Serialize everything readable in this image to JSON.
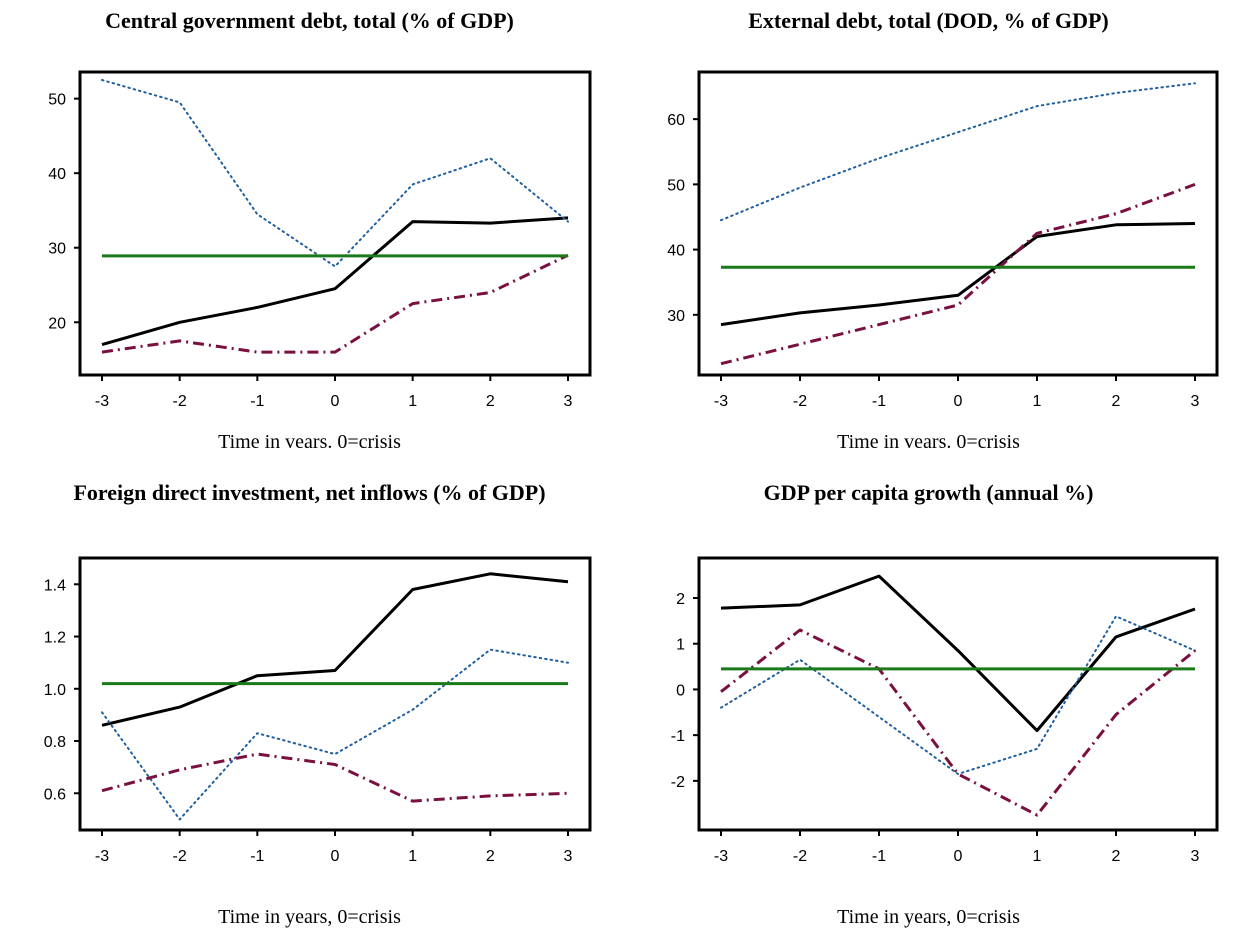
{
  "colors": {
    "series_solid": "#000000",
    "series_dotted": "#1f5f9f",
    "series_dashdot": "#7a1040",
    "series_flat": "#1a7a1a",
    "axis": "#000000",
    "background": "#ffffff"
  },
  "chart_data": [
    {
      "type": "line",
      "title": "Central government debt, total (% of GDP)",
      "xlabel": "Time in vears. 0=crisis",
      "ylabel": "",
      "x": [
        -3,
        -2,
        -1,
        0,
        1,
        2,
        3
      ],
      "xlim": [
        -3,
        3
      ],
      "ylim": [
        14,
        52.5
      ],
      "yticks": [
        20,
        30,
        40,
        50
      ],
      "grid": false,
      "series": [
        {
          "style": "solid",
          "values": [
            17,
            20,
            22,
            24.5,
            33.5,
            33.3,
            34
          ]
        },
        {
          "style": "dotted",
          "values": [
            52.5,
            49.5,
            34.5,
            27.5,
            38.5,
            42,
            33.5
          ]
        },
        {
          "style": "dashdot",
          "values": [
            16,
            17.5,
            16,
            16,
            22.5,
            24,
            29
          ]
        },
        {
          "style": "solid-flat",
          "values": [
            28.9,
            28.9,
            28.9,
            28.9,
            28.9,
            28.9,
            28.9
          ]
        }
      ]
    },
    {
      "type": "line",
      "title": "External debt, total (DOD, % of GDP)",
      "xlabel": "Time in vears. 0=crisis",
      "ylabel": "",
      "x": [
        -3,
        -2,
        -1,
        0,
        1,
        2,
        3
      ],
      "xlim": [
        -3,
        3
      ],
      "ylim": [
        22,
        66
      ],
      "yticks": [
        30,
        40,
        50,
        60
      ],
      "grid": false,
      "series": [
        {
          "style": "solid",
          "values": [
            28.5,
            30.3,
            31.5,
            33,
            42,
            43.8,
            44
          ]
        },
        {
          "style": "dotted",
          "values": [
            44.5,
            49.5,
            54,
            58,
            62,
            64,
            65.5
          ]
        },
        {
          "style": "dashdot",
          "values": [
            22.5,
            25.5,
            28.5,
            31.5,
            42.5,
            45.5,
            50
          ]
        },
        {
          "style": "solid-flat",
          "values": [
            37.3,
            37.3,
            37.3,
            37.3,
            37.3,
            37.3,
            37.3
          ]
        }
      ]
    },
    {
      "type": "line",
      "title": "Foreign direct investment, net inflows (% of GDP)",
      "xlabel": "Time in years, 0=crisis",
      "ylabel": "",
      "x": [
        -3,
        -2,
        -1,
        0,
        1,
        2,
        3
      ],
      "xlim": [
        -3,
        3
      ],
      "ylim": [
        0.49,
        1.47
      ],
      "yticks": [
        0.6,
        0.8,
        1.0,
        1.2,
        1.4
      ],
      "grid": false,
      "series": [
        {
          "style": "solid",
          "values": [
            0.86,
            0.93,
            1.05,
            1.07,
            1.38,
            1.44,
            1.41
          ]
        },
        {
          "style": "dotted",
          "values": [
            0.91,
            0.5,
            0.83,
            0.75,
            0.92,
            1.15,
            1.1
          ]
        },
        {
          "style": "dashdot",
          "values": [
            0.61,
            0.69,
            0.75,
            0.71,
            0.57,
            0.59,
            0.6
          ]
        },
        {
          "style": "solid-flat",
          "values": [
            1.02,
            1.02,
            1.02,
            1.02,
            1.02,
            1.02,
            1.02
          ]
        }
      ]
    },
    {
      "type": "line",
      "title": "GDP per capita growth (annual %)",
      "xlabel": "Time in years, 0=crisis",
      "ylabel": "",
      "x": [
        -3,
        -2,
        -1,
        0,
        1,
        2,
        3
      ],
      "xlim": [
        -3,
        3
      ],
      "ylim": [
        -2.9,
        2.7
      ],
      "yticks": [
        -2,
        -1,
        0,
        1,
        2
      ],
      "grid": false,
      "series": [
        {
          "style": "solid",
          "values": [
            1.78,
            1.85,
            2.48,
            0.85,
            -0.9,
            1.15,
            1.76
          ]
        },
        {
          "style": "dotted",
          "values": [
            -0.4,
            0.65,
            -0.6,
            -1.85,
            -1.3,
            1.6,
            0.85
          ]
        },
        {
          "style": "dashdot",
          "values": [
            -0.05,
            1.3,
            0.45,
            -1.85,
            -2.75,
            -0.55,
            0.85
          ]
        },
        {
          "style": "solid-flat",
          "values": [
            0.45,
            0.45,
            0.45,
            0.45,
            0.45,
            0.45,
            0.45
          ]
        }
      ]
    }
  ]
}
